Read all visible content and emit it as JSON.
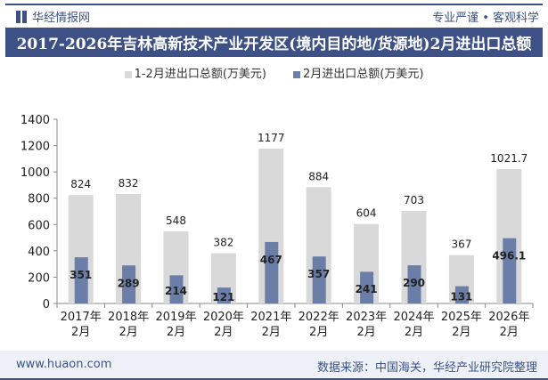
{
  "header": {
    "brand": "华经情报网",
    "slogan": "专业严谨 • 客观科学",
    "title": "2017-2026年吉林高新技术产业开发区(境内目的地/货源地)2月进出口总额"
  },
  "footer": {
    "website": "www.huaon.com",
    "source": "数据来源：中国海关，华经产业研究院整理"
  },
  "colors": {
    "series1": "#d9d9d9",
    "series2": "#6b7ea8",
    "brand": "#3d5186"
  },
  "chart_data": {
    "type": "bar",
    "categories": [
      "2017年\n2月",
      "2018年\n2月",
      "2019年\n2月",
      "2020年\n2月",
      "2021年\n2月",
      "2022年\n2月",
      "2023年\n2月",
      "2024年\n2月",
      "2025年\n2月",
      "2026年\n2月"
    ],
    "series": [
      {
        "name": "1-2月进出口总额(万美元)",
        "values": [
          824,
          832,
          548,
          382,
          1177,
          884,
          604,
          703,
          367,
          1021.7
        ]
      },
      {
        "name": "2月进出口总额(万美元)",
        "values": [
          351,
          289,
          214,
          121,
          467,
          357,
          241,
          290,
          131,
          496.1
        ]
      }
    ],
    "yticks": [
      0,
      200,
      400,
      600,
      800,
      1000,
      1200,
      1400
    ],
    "ylim": [
      0,
      1400
    ],
    "legend": "top",
    "grid": false
  }
}
